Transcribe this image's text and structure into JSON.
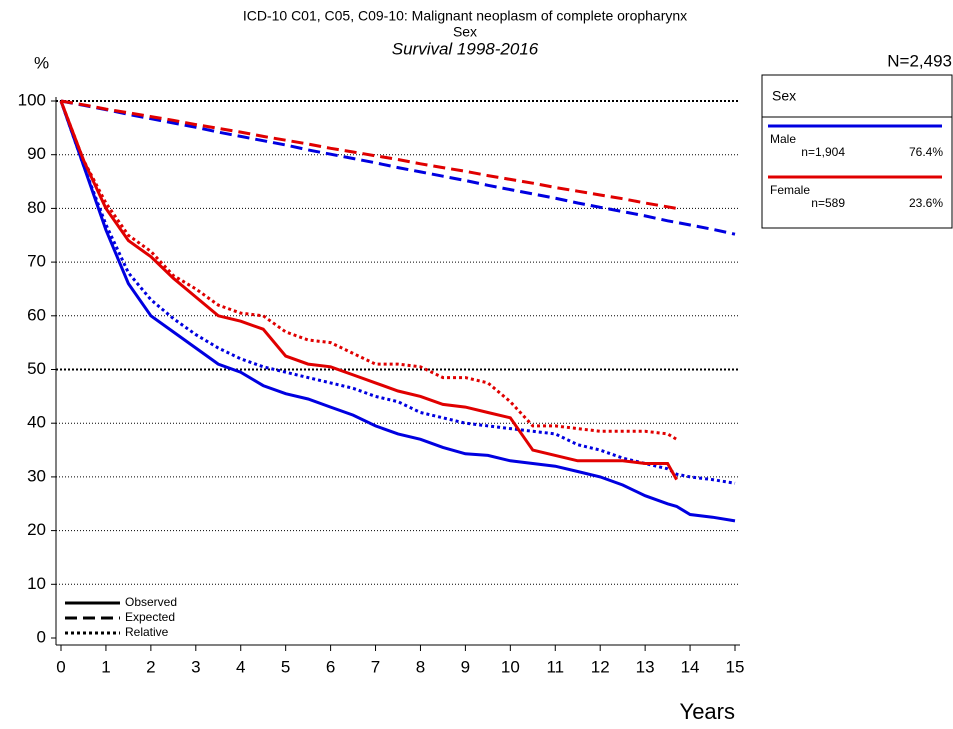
{
  "chart_data": {
    "type": "line",
    "title": "ICD-10 C01, C05, C09-10: Malignant neoplasm of complete oropharynx",
    "subtitle": "Sex",
    "subtitle2": "Survival 1998-2016",
    "ylabel": "%",
    "xlabel": "Years",
    "total": "N=2,493",
    "legend_title": "Sex",
    "line_styles": [
      "Observed",
      "Expected",
      "Relative"
    ],
    "x": [
      0,
      0.5,
      1,
      1.5,
      2,
      2.5,
      3,
      3.5,
      4,
      4.5,
      5,
      5.5,
      6,
      6.5,
      7,
      7.5,
      8,
      8.5,
      9,
      9.5,
      10,
      10.5,
      11,
      11.5,
      12,
      12.5,
      13,
      13.5,
      13.7,
      14,
      14.5,
      15
    ],
    "series": [
      {
        "name": "Male",
        "n": "n=1,904",
        "share": "76.4%",
        "color": "#0000e0",
        "observed": [
          100,
          88,
          76,
          66,
          60,
          57,
          54,
          51,
          49.5,
          47,
          45.5,
          44.5,
          43,
          41.5,
          39.5,
          38,
          37,
          35.5,
          34.3,
          34,
          33,
          32.5,
          32,
          31,
          30,
          28.5,
          26.5,
          25,
          24.5,
          23,
          22.5,
          21.8
        ],
        "expected": [
          100,
          99.2,
          98.4,
          97.5,
          96.7,
          95.9,
          95.1,
          94.2,
          93.4,
          92.6,
          91.8,
          90.9,
          90.1,
          89.3,
          88.5,
          87.6,
          86.8,
          86,
          85.2,
          84.3,
          83.5,
          82.7,
          81.9,
          81,
          80.2,
          79.4,
          78.6,
          77.7,
          77.4,
          76.9,
          76.1,
          75.2
        ],
        "relative": [
          100,
          88,
          77,
          68,
          63,
          59.5,
          56.5,
          54,
          52,
          50.5,
          49.5,
          48.5,
          47.5,
          46.5,
          45,
          44,
          42,
          41,
          40,
          39.5,
          39,
          38.5,
          38,
          36,
          35,
          33.5,
          32.5,
          31.5,
          30.5,
          30,
          29.5,
          28.8
        ]
      },
      {
        "name": "Female",
        "n": "n=589",
        "share": "23.6%",
        "color": "#e00000",
        "observed": [
          100,
          89,
          80,
          74,
          71,
          67,
          63.5,
          60,
          59,
          57.5,
          52.5,
          51,
          50.5,
          49,
          47.5,
          46,
          45,
          43.5,
          43,
          42,
          41,
          35,
          34,
          33,
          33,
          33,
          32.5,
          32.5,
          29.5,
          null,
          null,
          null
        ],
        "expected": [
          100,
          99.3,
          98.5,
          97.8,
          97.1,
          96.4,
          95.6,
          94.9,
          94.2,
          93.4,
          92.7,
          92,
          91.2,
          90.5,
          89.8,
          89.1,
          88.3,
          87.6,
          86.9,
          86.1,
          85.4,
          84.7,
          83.9,
          83.2,
          82.5,
          81.8,
          81,
          80.3,
          80,
          null,
          null,
          null
        ],
        "relative": [
          100,
          89,
          81,
          75,
          72,
          67.5,
          65,
          62,
          60.5,
          60,
          57,
          55.5,
          55,
          53,
          51,
          51,
          50.5,
          48.5,
          48.5,
          47.5,
          44,
          39.5,
          39.5,
          39,
          38.5,
          38.5,
          38.5,
          38,
          37,
          null,
          null,
          null
        ]
      }
    ],
    "xlim": [
      0,
      15
    ],
    "ylim": [
      0,
      100
    ],
    "xticks": [
      0,
      1,
      2,
      3,
      4,
      5,
      6,
      7,
      8,
      9,
      10,
      11,
      12,
      13,
      14,
      15
    ],
    "yticks": [
      0,
      10,
      20,
      30,
      40,
      50,
      60,
      70,
      80,
      90,
      100
    ],
    "grid": true
  }
}
